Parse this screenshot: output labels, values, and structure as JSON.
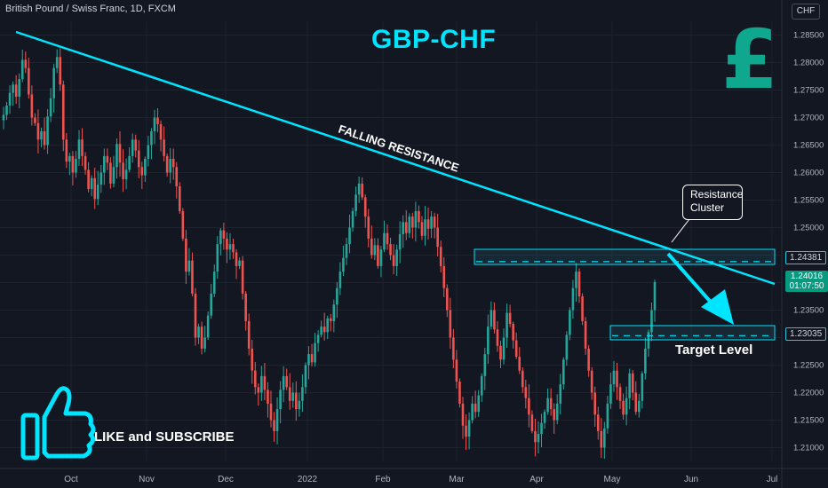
{
  "header": {
    "symbol": "British Pound / Swiss Franc, 1D, FXCM",
    "currency": "CHF"
  },
  "annotations": {
    "title": "GBP-CHF",
    "falling_resistance": "FALLING RESISTANCE",
    "resistance_cluster_line1": "Resistance",
    "resistance_cluster_line2": "Cluster",
    "target_level": "Target Level",
    "like_subscribe": "LIKE and SUBSCRIBE",
    "pound_symbol": "£"
  },
  "colors": {
    "background": "#131722",
    "bull": "#26a69a",
    "bear": "#ef5350",
    "accent": "#00e5ff",
    "pound": "#0fa88f"
  },
  "chart_data": {
    "type": "candlestick",
    "title": "GBP-CHF",
    "ylim": [
      1.2075,
      1.2875
    ],
    "y_ticks": [
      "1.28500",
      "1.28000",
      "1.27500",
      "1.27000",
      "1.26500",
      "1.26000",
      "1.25500",
      "1.25000",
      "1.24500",
      "1.24000",
      "1.23500",
      "1.23000",
      "1.22500",
      "1.22000",
      "1.21500",
      "1.21000"
    ],
    "x_ticks": [
      "Oct",
      "Nov",
      "Dec",
      "2022",
      "Feb",
      "Mar",
      "Apr",
      "May",
      "Jun",
      "Jul"
    ],
    "resistance_level": "1.24381",
    "target_level": "1.23035",
    "last_price": "1.24016",
    "countdown": "01:07:50",
    "trendline": {
      "from": [
        "Sep",
        1.2835
      ],
      "to": [
        "Jul",
        1.2393
      ]
    },
    "closes": [
      1.2705,
      1.2722,
      1.2745,
      1.276,
      1.2738,
      1.277,
      1.2805,
      1.279,
      1.2742,
      1.27,
      1.269,
      1.266,
      1.2675,
      1.265,
      1.2702,
      1.2735,
      1.279,
      1.281,
      1.276,
      1.266,
      1.262,
      1.263,
      1.26,
      1.2625,
      1.266,
      1.263,
      1.2605,
      1.257,
      1.259,
      1.2552,
      1.2578,
      1.26,
      1.263,
      1.2618,
      1.258,
      1.261,
      1.2652,
      1.2618,
      1.2588,
      1.2605,
      1.263,
      1.266,
      1.264,
      1.261,
      1.2595,
      1.2625,
      1.265,
      1.2675,
      1.27,
      1.2688,
      1.266,
      1.263,
      1.26,
      1.2625,
      1.261,
      1.2575,
      1.253,
      1.248,
      1.242,
      1.244,
      1.238,
      1.23,
      1.232,
      1.228,
      1.23,
      1.234,
      1.238,
      1.242,
      1.247,
      1.2495,
      1.248,
      1.246,
      1.247,
      1.2455,
      1.243,
      1.244,
      1.238,
      1.233,
      1.228,
      1.224,
      1.221,
      1.22,
      1.223,
      1.2205,
      1.218,
      1.215,
      1.213,
      1.217,
      1.2205,
      1.223,
      1.221,
      1.2185,
      1.22,
      1.217,
      1.2185,
      1.221,
      1.225,
      1.227,
      1.2255,
      1.229,
      1.2305,
      1.232,
      1.231,
      1.2335,
      1.233,
      1.236,
      1.239,
      1.242,
      1.2445,
      1.247,
      1.25,
      1.253,
      1.256,
      1.258,
      1.2555,
      1.252,
      1.248,
      1.245,
      1.2468,
      1.243,
      1.246,
      1.249,
      1.247,
      1.245,
      1.243,
      1.246,
      1.2488,
      1.251,
      1.249,
      1.252,
      1.25,
      1.253,
      1.251,
      1.2485,
      1.2515,
      1.2498,
      1.252,
      1.25,
      1.2465,
      1.243,
      1.239,
      1.235,
      1.23,
      1.226,
      1.222,
      1.218,
      1.214,
      1.212,
      1.215,
      1.218,
      1.2165,
      1.2195,
      1.223,
      1.227,
      1.232,
      1.235,
      1.2315,
      1.2285,
      1.226,
      1.23,
      1.2345,
      1.2325,
      1.2295,
      1.2265,
      1.224,
      1.221,
      1.219,
      1.216,
      1.213,
      1.211,
      1.2125,
      1.2145,
      1.2165,
      1.219,
      1.217,
      1.215,
      1.218,
      1.2215,
      1.226,
      1.2305,
      1.235,
      1.239,
      1.242,
      1.2375,
      1.233,
      1.228,
      1.224,
      1.22,
      1.216,
      1.213,
      1.21,
      1.2135,
      1.218,
      1.2215,
      1.224,
      1.221,
      1.2185,
      1.216,
      1.219,
      1.2235,
      1.22,
      1.2165,
      1.2185,
      1.2235,
      1.228,
      1.231,
      1.235,
      1.2401
    ]
  }
}
